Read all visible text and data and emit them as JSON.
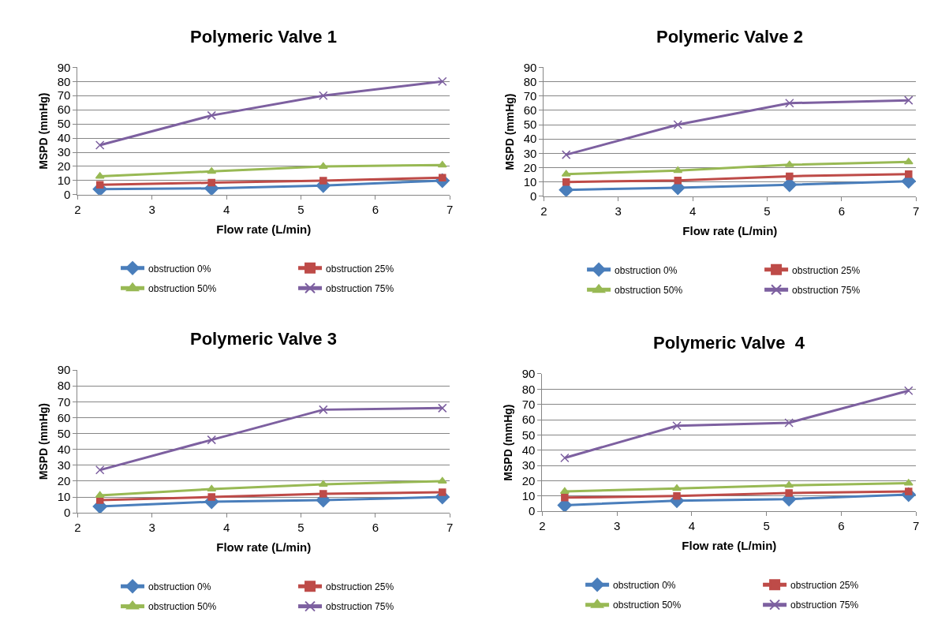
{
  "chart_data": [
    {
      "type": "line",
      "title": "Polymeric Valve 1",
      "xlabel": "Flow rate (L/min)",
      "ylabel": "MSPD (mmHg)",
      "x": [
        2.3,
        3.8,
        5.3,
        6.9
      ],
      "xlim": [
        2,
        7
      ],
      "xticks": [
        2,
        3,
        4,
        5,
        6,
        7
      ],
      "ylim": [
        0,
        90
      ],
      "yticks": [
        0,
        10,
        20,
        30,
        40,
        50,
        60,
        70,
        80,
        90
      ],
      "grid": "y",
      "legend": "bottom",
      "series": [
        {
          "name": "obstruction 0%",
          "color": "#4a7ebb",
          "marker": "diamond",
          "values": [
            4,
            4.5,
            6.5,
            10
          ]
        },
        {
          "name": "obstruction 25%",
          "color": "#be4b48",
          "marker": "square",
          "values": [
            7,
            8.5,
            10,
            12
          ]
        },
        {
          "name": "obstruction 50%",
          "color": "#98b954",
          "marker": "triangle",
          "values": [
            13,
            16.5,
            20,
            21
          ]
        },
        {
          "name": "obstruction 75%",
          "color": "#7d60a0",
          "marker": "cross",
          "values": [
            35,
            56,
            70,
            80
          ]
        }
      ]
    },
    {
      "type": "line",
      "title": "Polymeric Valve 2",
      "xlabel": "Flow rate (L/min)",
      "ylabel": "MSPD (mmHg)",
      "x": [
        2.3,
        3.8,
        5.3,
        6.9
      ],
      "xlim": [
        2,
        7
      ],
      "xticks": [
        2,
        3,
        4,
        5,
        6,
        7
      ],
      "ylim": [
        0,
        90
      ],
      "yticks": [
        0,
        10,
        20,
        30,
        40,
        50,
        60,
        70,
        80,
        90
      ],
      "grid": "y",
      "legend": "bottom",
      "series": [
        {
          "name": "obstruction 0%",
          "color": "#4a7ebb",
          "marker": "diamond",
          "values": [
            4.5,
            6,
            8,
            10.5
          ]
        },
        {
          "name": "obstruction 25%",
          "color": "#be4b48",
          "marker": "square",
          "values": [
            10,
            11,
            14,
            15.5
          ]
        },
        {
          "name": "obstruction 50%",
          "color": "#98b954",
          "marker": "triangle",
          "values": [
            15.5,
            18,
            22,
            24
          ]
        },
        {
          "name": "obstruction 75%",
          "color": "#7d60a0",
          "marker": "cross",
          "values": [
            29,
            50,
            65,
            67
          ]
        }
      ]
    },
    {
      "type": "line",
      "title": "Polymeric Valve 3",
      "xlabel": "Flow rate (L/min)",
      "ylabel": "MSPD (mmHg)",
      "x": [
        2.3,
        3.8,
        5.3,
        6.9
      ],
      "xlim": [
        2,
        7
      ],
      "xticks": [
        2,
        3,
        4,
        5,
        6,
        7
      ],
      "ylim": [
        0,
        90
      ],
      "yticks": [
        0,
        10,
        20,
        30,
        40,
        50,
        60,
        70,
        80,
        90
      ],
      "grid": "y",
      "legend": "bottom",
      "series": [
        {
          "name": "obstruction 0%",
          "color": "#4a7ebb",
          "marker": "diamond",
          "values": [
            4,
            7,
            8,
            10
          ]
        },
        {
          "name": "obstruction 25%",
          "color": "#be4b48",
          "marker": "square",
          "values": [
            8,
            10,
            12,
            13
          ]
        },
        {
          "name": "obstruction 50%",
          "color": "#98b954",
          "marker": "triangle",
          "values": [
            11,
            15,
            18,
            20
          ]
        },
        {
          "name": "obstruction 75%",
          "color": "#7d60a0",
          "marker": "cross",
          "values": [
            27,
            46,
            65,
            66
          ]
        }
      ]
    },
    {
      "type": "line",
      "title": "Polymeric Valve  4",
      "xlabel": "Flow rate (L/min)",
      "ylabel": "MSPD (mmHg)",
      "x": [
        2.3,
        3.8,
        5.3,
        6.9
      ],
      "xlim": [
        2,
        7
      ],
      "xticks": [
        2,
        3,
        4,
        5,
        6,
        7
      ],
      "ylim": [
        0,
        90
      ],
      "yticks": [
        0,
        10,
        20,
        30,
        40,
        50,
        60,
        70,
        80,
        90
      ],
      "grid": "y",
      "legend": "bottom",
      "series": [
        {
          "name": "obstruction 0%",
          "color": "#4a7ebb",
          "marker": "diamond",
          "values": [
            4,
            7,
            8,
            11
          ]
        },
        {
          "name": "obstruction 25%",
          "color": "#be4b48",
          "marker": "square",
          "values": [
            9,
            10,
            12,
            13
          ]
        },
        {
          "name": "obstruction 50%",
          "color": "#98b954",
          "marker": "triangle",
          "values": [
            13,
            15,
            17,
            18.5
          ]
        },
        {
          "name": "obstruction 75%",
          "color": "#7d60a0",
          "marker": "cross",
          "values": [
            35,
            56,
            58,
            79
          ]
        }
      ]
    }
  ]
}
